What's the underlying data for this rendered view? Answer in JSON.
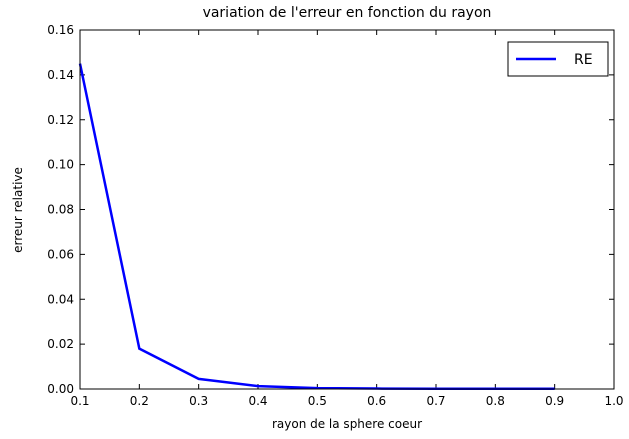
{
  "chart_data": {
    "type": "line",
    "title": "variation de l'erreur en fonction du rayon",
    "x_label": "rayon de la sphere coeur",
    "y_label": "erreur relative",
    "x": [
      0.1,
      0.2,
      0.3,
      0.4,
      0.5,
      0.6,
      0.7,
      0.8,
      0.9
    ],
    "series": [
      {
        "name": "RE",
        "color": "#0000ff",
        "values": [
          0.145,
          0.018,
          0.0045,
          0.0013,
          0.0004,
          0.0002,
          0.0001,
          0.0001,
          0.0001
        ]
      }
    ],
    "xlim": [
      0.1,
      1.0
    ],
    "xticks": [
      0.1,
      0.2,
      0.3,
      0.4,
      0.5,
      0.6,
      0.7,
      0.8,
      0.9,
      {
        "value": 1.0,
        "label": "1.0"
      }
    ],
    "ylim": [
      0,
      0.16
    ],
    "yticks": [
      {
        "value": 0,
        "label": "0.00"
      },
      {
        "value": 0.02,
        "label": "0.02"
      },
      {
        "value": 0.04,
        "label": "0.04"
      },
      {
        "value": 0.06,
        "label": "0.06"
      },
      {
        "value": 0.08,
        "label": "0.08"
      },
      {
        "value": 0.1,
        "label": "0.10"
      },
      {
        "value": 0.12,
        "label": "0.12"
      },
      {
        "value": 0.14,
        "label": "0.14"
      },
      {
        "value": 0.16,
        "label": "0.16"
      }
    ],
    "legend": "upper right"
  }
}
